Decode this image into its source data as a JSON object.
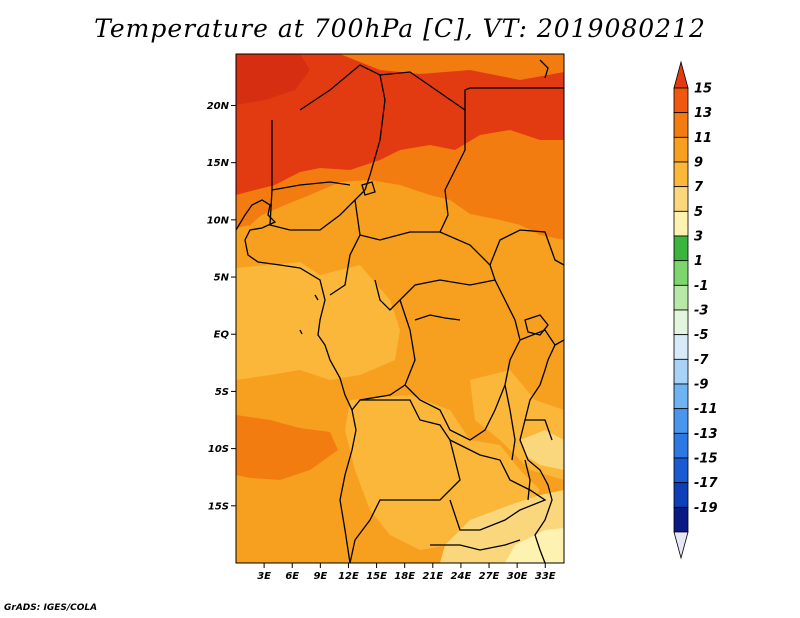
{
  "title": "Temperature at 700hPa [C], VT: 2019080212",
  "footer": "GrADS: IGES/COLA",
  "map": {
    "lon_range_deg": [
      0,
      35
    ],
    "lat_range_deg": [
      -20,
      24.5
    ],
    "x_ticks": [
      "3E",
      "6E",
      "9E",
      "12E",
      "15E",
      "18E",
      "21E",
      "24E",
      "27E",
      "30E",
      "33E"
    ],
    "x_tick_values": [
      3,
      6,
      9,
      12,
      15,
      18,
      21,
      24,
      27,
      30,
      33
    ],
    "y_ticks": [
      "20N",
      "15N",
      "10N",
      "5N",
      "EQ",
      "5S",
      "10S",
      "15S"
    ],
    "y_tick_values": [
      20,
      15,
      10,
      5,
      0,
      -5,
      -10,
      -15
    ]
  },
  "colorbar": {
    "labels": [
      "15",
      "13",
      "11",
      "9",
      "7",
      "5",
      "3",
      "1",
      "-1",
      "-3",
      "-5",
      "-7",
      "-9",
      "-11",
      "-13",
      "-15",
      "-17",
      "-19"
    ],
    "colors": [
      "#e33b11",
      "#f0580f",
      "#f37c11",
      "#f7a020",
      "#fab739",
      "#fad77c",
      "#fdf2b0",
      "#3bb53e",
      "#7ed46d",
      "#b7e8a8",
      "#e3f6dd",
      "#d6eaf8",
      "#a8d3f7",
      "#6eb4f3",
      "#4a96ec",
      "#2d78e3",
      "#1a5ad3",
      "#0d3fb8",
      "#0a1a82",
      "#e6e6f7"
    ]
  },
  "regions_legend": {
    "hot_north": "#e33b11",
    "warm": "#f37c11",
    "mid": "#f7a020",
    "mild": "#fab739",
    "cool": "#fad77c",
    "coolest": "#fdf2b0"
  }
}
